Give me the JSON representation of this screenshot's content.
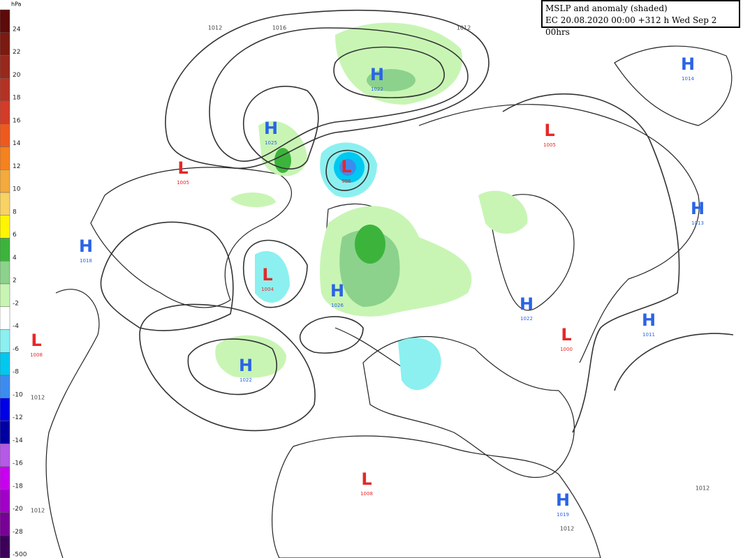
{
  "header": {
    "title": "MSLP and anomaly (shaded)",
    "subtitle": "EC 20.08.2020 00:00 +312 h Wed Sep 2 00hrs"
  },
  "legend": {
    "unit": "hPa",
    "labels": [
      "24",
      "22",
      "20",
      "18",
      "16",
      "14",
      "12",
      "10",
      "8",
      "6",
      "4",
      "2",
      "-2",
      "-4",
      "-6",
      "-8",
      "-10",
      "-12",
      "-14",
      "-16",
      "-18",
      "-20",
      "-28",
      "-500"
    ],
    "colors": [
      "#5c0a0a",
      "#7a1a10",
      "#96281c",
      "#b43224",
      "#d23c28",
      "#ee5a1e",
      "#f4821e",
      "#f4aa3c",
      "#f8d264",
      "#fff500",
      "#3cb43c",
      "#8cd28c",
      "#c8f5b4",
      "#ffffff",
      "#8cf0f0",
      "#00c8f0",
      "#3c8cf0",
      "#0000e6",
      "#0000a0",
      "#b45ae6",
      "#c800f0",
      "#a000c8",
      "#780096",
      "#3c005a"
    ]
  },
  "centers": [
    {
      "kind": "H",
      "pressure": "1022"
    },
    {
      "kind": "H",
      "pressure": "1025"
    },
    {
      "kind": "L",
      "pressure": "1005"
    },
    {
      "kind": "L",
      "pressure": "996"
    },
    {
      "kind": "H",
      "pressure": "1018"
    },
    {
      "kind": "L",
      "pressure": "1004"
    },
    {
      "kind": "H",
      "pressure": "1026"
    },
    {
      "kind": "L",
      "pressure": "1008"
    },
    {
      "kind": "H",
      "pressure": "1022"
    },
    {
      "kind": "L",
      "pressure": "1005"
    },
    {
      "kind": "H",
      "pressure": "1014"
    },
    {
      "kind": "H",
      "pressure": "1013"
    },
    {
      "kind": "H",
      "pressure": "1022"
    },
    {
      "kind": "L",
      "pressure": "1000"
    },
    {
      "kind": "H",
      "pressure": "1011"
    },
    {
      "kind": "L",
      "pressure": "1008"
    },
    {
      "kind": "H",
      "pressure": "1019"
    }
  ],
  "isobar_labels": [
    "1012",
    "1016",
    "1012",
    "1012",
    "1012",
    "1012",
    "1012"
  ]
}
